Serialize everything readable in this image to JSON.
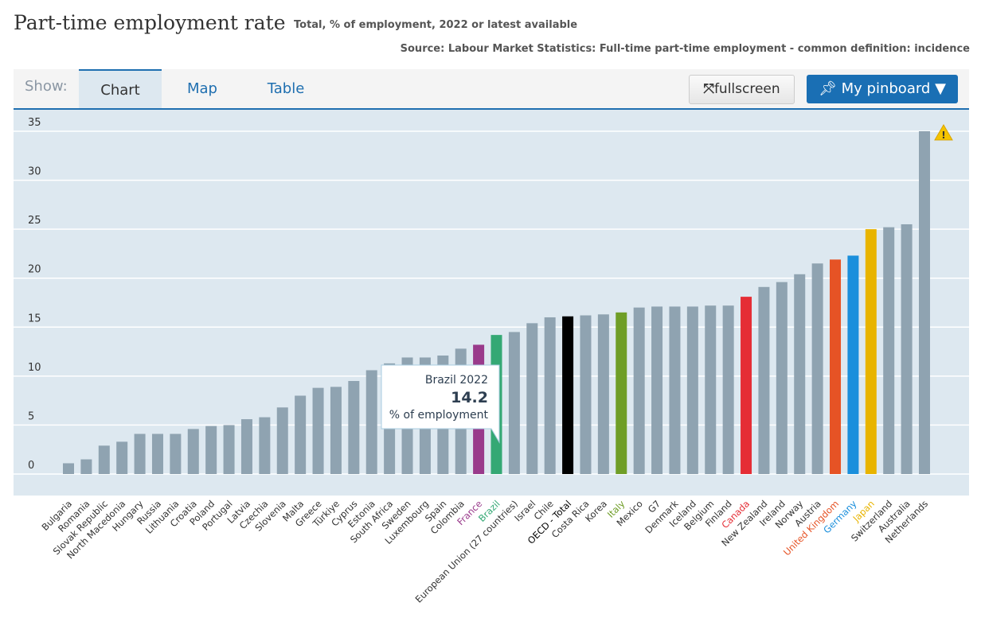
{
  "header": {
    "title": "Part-time employment rate",
    "subtitle": "Total, % of employment, 2022 or latest available",
    "source": "Source: Labour Market Statistics: Full-time part-time employment - common definition: incidence"
  },
  "toolbar": {
    "show_label": "Show:",
    "tabs": [
      {
        "label": "Chart",
        "active": true
      },
      {
        "label": "Map"
      },
      {
        "label": "Table"
      }
    ],
    "fullscreen_label": "fullscreen",
    "fullscreen_icon": "expand-arrows-icon",
    "pinboard_label": "My pinboard ▼",
    "pinboard_icon": "pin-icon"
  },
  "tooltip": {
    "title": "Brazil 2022",
    "value": "14.2",
    "unit": "% of employment"
  },
  "chart_data": {
    "type": "bar",
    "ylim": [
      0,
      35
    ],
    "yticks": [
      0,
      5,
      10,
      15,
      20,
      25,
      30,
      35
    ],
    "grid": true,
    "warning_icon": "warning-triangle-icon",
    "default_color": "#8fa3b1",
    "categories": [
      "Bulgaria",
      "Romania",
      "Slovak Republic",
      "North Macedonia",
      "Hungary",
      "Russia",
      "Lithuania",
      "Croatia",
      "Poland",
      "Portugal",
      "Latvia",
      "Czechia",
      "Slovenia",
      "Malta",
      "Greece",
      "Türkiye",
      "Cyprus",
      "Estonia",
      "South Africa",
      "Sweden",
      "Luxembourg",
      "Spain",
      "Colombia",
      "France",
      "Brazil",
      "European Union (27 countries)",
      "Israel",
      "Chile",
      "OECD - Total",
      "Costa Rica",
      "Korea",
      "Italy",
      "Mexico",
      "G7",
      "Denmark",
      "Iceland",
      "Belgium",
      "Finland",
      "Canada",
      "New Zealand",
      "Ireland",
      "Norway",
      "Austria",
      "United Kingdom",
      "Germany",
      "Japan",
      "Switzerland",
      "Australia",
      "Netherlands"
    ],
    "values": [
      1.1,
      1.5,
      2.9,
      3.3,
      4.1,
      4.1,
      4.1,
      4.6,
      4.9,
      5.0,
      5.6,
      5.8,
      6.8,
      8.0,
      8.8,
      8.9,
      9.5,
      10.6,
      11.3,
      11.9,
      11.9,
      12.1,
      12.8,
      13.2,
      14.2,
      14.5,
      15.4,
      16.0,
      16.1,
      16.2,
      16.3,
      16.5,
      17.0,
      17.1,
      17.1,
      17.1,
      17.2,
      17.2,
      18.1,
      19.1,
      19.6,
      20.4,
      21.5,
      21.9,
      22.3,
      25.0,
      25.2,
      25.5,
      35.0
    ],
    "highlights": {
      "France": "#993a8b",
      "Brazil": "#34a874",
      "OECD - Total": "#000000",
      "Italy": "#6f9e27",
      "Canada": "#e52d35",
      "United Kingdom": "#e65325",
      "Germany": "#1a8fdc",
      "Japan": "#e8b400"
    }
  }
}
